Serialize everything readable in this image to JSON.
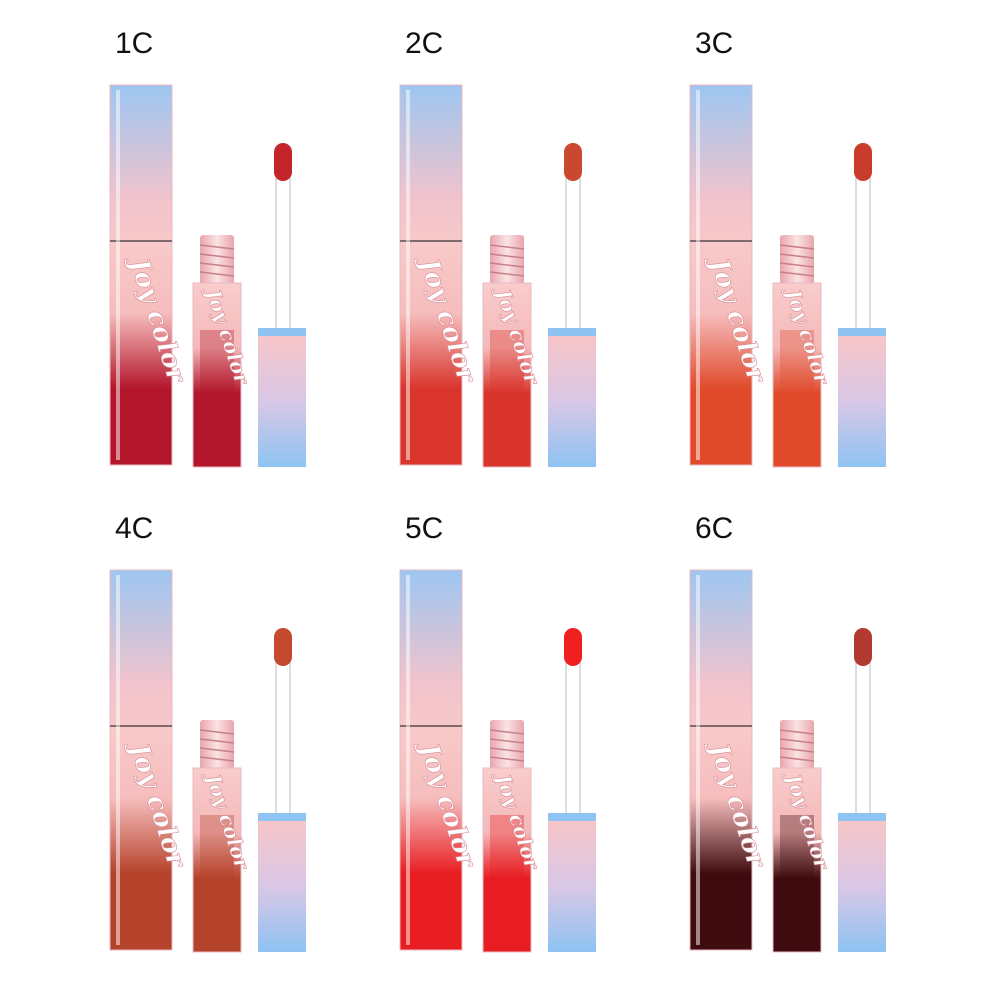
{
  "brand": "Joy color",
  "shades": [
    {
      "label": "1C",
      "color": "#b3162b",
      "tip": "#c4252b"
    },
    {
      "label": "2C",
      "color": "#d9352c",
      "tip": "#c9482f"
    },
    {
      "label": "3C",
      "color": "#e04a2b",
      "tip": "#c93b2b"
    },
    {
      "label": "4C",
      "color": "#b5422a",
      "tip": "#c44a2f"
    },
    {
      "label": "5C",
      "color": "#e81d22",
      "tip": "#f02020"
    },
    {
      "label": "6C",
      "color": "#3e0c0e",
      "tip": "#b33a30"
    }
  ]
}
